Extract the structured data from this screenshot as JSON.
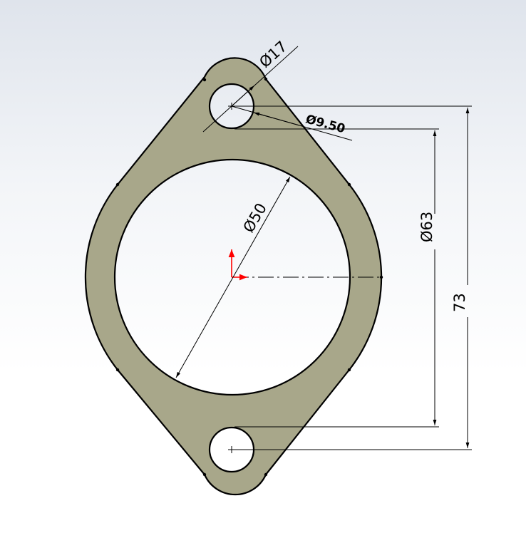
{
  "drawing": {
    "part_fill": "#a8a78a",
    "outline_color": "#000000",
    "background_top": "#dfe4ec",
    "background_bottom": "#ffffff",
    "origin_axis_color": "#ff0000"
  },
  "dimensions": {
    "bolt_hole_boss": "Ø17",
    "bolt_hole": "Ø9.50",
    "bore": "Ø50",
    "bolt_circle": "Ø63",
    "overall_spacing": "73"
  }
}
